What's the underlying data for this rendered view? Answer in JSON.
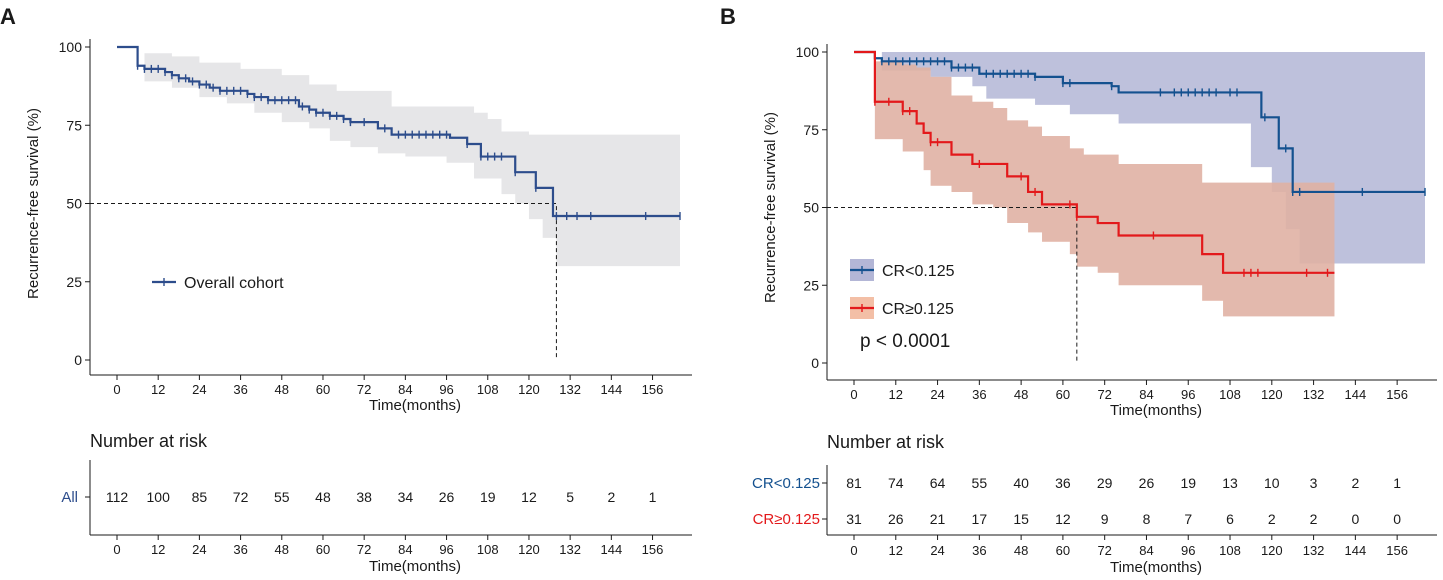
{
  "colors": {
    "overall": "#2d4d8c",
    "overall_ci": "#e6e6e8",
    "cr_low": "#14518f",
    "cr_low_ci": "#b3b6d6",
    "cr_high": "#e3191b",
    "cr_high_ci": "#f3bfa6",
    "axis": "#1a1a1a"
  },
  "chart_data": [
    {
      "panel": "A",
      "type": "line",
      "subtype": "kaplan-meier",
      "ylabel": "Recurrence-free survival (%)",
      "xlabel": "Time(months)",
      "xlim": [
        0,
        164
      ],
      "ylim": [
        0,
        100
      ],
      "x_ticks": [
        0,
        12,
        24,
        36,
        48,
        60,
        72,
        84,
        96,
        108,
        120,
        132,
        144,
        156
      ],
      "y_ticks": [
        0,
        25,
        50,
        75,
        100
      ],
      "legend": "bottom-left",
      "median_line": {
        "x": 128,
        "y": 50
      },
      "series": [
        {
          "name": "Overall cohort",
          "color_key": "overall",
          "ci_color_key": "overall_ci",
          "steps": [
            [
              0,
              100
            ],
            [
              6,
              94
            ],
            [
              8,
              93
            ],
            [
              14,
              92
            ],
            [
              16,
              91
            ],
            [
              18,
              90
            ],
            [
              21,
              89
            ],
            [
              24,
              88
            ],
            [
              27,
              87
            ],
            [
              30,
              86
            ],
            [
              38,
              85
            ],
            [
              40,
              84
            ],
            [
              44,
              83
            ],
            [
              53,
              81
            ],
            [
              56,
              80
            ],
            [
              58,
              79
            ],
            [
              62,
              78
            ],
            [
              66,
              77
            ],
            [
              68,
              76
            ],
            [
              76,
              74
            ],
            [
              80,
              72
            ],
            [
              97,
              71
            ],
            [
              102,
              69
            ],
            [
              106,
              65
            ],
            [
              116,
              60
            ],
            [
              122,
              55
            ],
            [
              127,
              46
            ],
            [
              164,
              46
            ]
          ],
          "ci_upper": [
            [
              0,
              100
            ],
            [
              8,
              98
            ],
            [
              16,
              97
            ],
            [
              24,
              95
            ],
            [
              36,
              93
            ],
            [
              48,
              91
            ],
            [
              56,
              88
            ],
            [
              64,
              86
            ],
            [
              72,
              86
            ],
            [
              80,
              81
            ],
            [
              96,
              81
            ],
            [
              104,
              79
            ],
            [
              108,
              77
            ],
            [
              112,
              73
            ],
            [
              120,
              72
            ],
            [
              130,
              72
            ],
            [
              164,
              72
            ]
          ],
          "ci_lower": [
            [
              0,
              100
            ],
            [
              8,
              89
            ],
            [
              16,
              87
            ],
            [
              24,
              84
            ],
            [
              32,
              82
            ],
            [
              40,
              79
            ],
            [
              48,
              76
            ],
            [
              56,
              74
            ],
            [
              62,
              70
            ],
            [
              68,
              68
            ],
            [
              76,
              66
            ],
            [
              84,
              65
            ],
            [
              96,
              63
            ],
            [
              104,
              58
            ],
            [
              112,
              53
            ],
            [
              116,
              50
            ],
            [
              120,
              45
            ],
            [
              124,
              39
            ],
            [
              128,
              30
            ],
            [
              164,
              30
            ]
          ],
          "censor_x": [
            6,
            8,
            10,
            12,
            14,
            16,
            18,
            20,
            22,
            24,
            26,
            28,
            30,
            32,
            34,
            36,
            38,
            40,
            42,
            44,
            46,
            48,
            50,
            52,
            54,
            56,
            58,
            60,
            62,
            64,
            66,
            68,
            72,
            78,
            82,
            84,
            86,
            88,
            90,
            92,
            94,
            96,
            102,
            106,
            108,
            110,
            112,
            116,
            122,
            128,
            131,
            134,
            138,
            154,
            164
          ]
        }
      ],
      "risk_table": {
        "title": "Number at risk",
        "rows": [
          {
            "label": "All",
            "values": [
              112,
              100,
              85,
              72,
              55,
              48,
              38,
              34,
              26,
              19,
              12,
              5,
              2,
              1
            ]
          }
        ],
        "xlabel": "Time(months)",
        "x_ticks": [
          0,
          12,
          24,
          36,
          48,
          60,
          72,
          84,
          96,
          108,
          120,
          132,
          144,
          156
        ]
      }
    },
    {
      "panel": "B",
      "type": "line",
      "subtype": "kaplan-meier",
      "ylabel": "Recurrence-free survival (%)",
      "xlabel": "Time(months)",
      "xlim": [
        0,
        164
      ],
      "ylim": [
        0,
        100
      ],
      "x_ticks": [
        0,
        12,
        24,
        36,
        48,
        60,
        72,
        84,
        96,
        108,
        120,
        132,
        144,
        156
      ],
      "y_ticks": [
        0,
        25,
        50,
        75,
        100
      ],
      "legend": "bottom-left",
      "annotation": "p < 0.0001",
      "median_line": {
        "x": 64,
        "y": 50
      },
      "series": [
        {
          "name": "CR<0.125",
          "color_key": "cr_low",
          "ci_color_key": "cr_low_ci",
          "steps": [
            [
              0,
              100
            ],
            [
              6,
              98
            ],
            [
              8,
              97
            ],
            [
              28,
              95
            ],
            [
              36,
              93
            ],
            [
              52,
              92
            ],
            [
              60,
              90
            ],
            [
              74,
              89
            ],
            [
              76,
              87
            ],
            [
              117,
              79
            ],
            [
              122,
              69
            ],
            [
              126,
              55
            ],
            [
              164,
              55
            ]
          ],
          "ci_upper": [
            [
              0,
              100
            ],
            [
              164,
              100
            ]
          ],
          "ci_lower": [
            [
              0,
              100
            ],
            [
              8,
              94
            ],
            [
              22,
              92
            ],
            [
              34,
              89
            ],
            [
              38,
              85
            ],
            [
              52,
              83
            ],
            [
              62,
              80
            ],
            [
              72,
              80
            ],
            [
              76,
              77
            ],
            [
              106,
              77
            ],
            [
              114,
              63
            ],
            [
              120,
              55
            ],
            [
              124,
              43
            ],
            [
              128,
              32
            ],
            [
              164,
              32
            ]
          ],
          "censor_x": [
            6,
            8,
            10,
            12,
            14,
            16,
            18,
            20,
            22,
            24,
            26,
            28,
            30,
            32,
            34,
            38,
            40,
            42,
            44,
            46,
            48,
            50,
            52,
            60,
            62,
            74,
            88,
            92,
            94,
            96,
            98,
            100,
            102,
            104,
            108,
            110,
            118,
            124,
            126,
            128,
            146,
            164
          ]
        },
        {
          "name": "CR≥0.125",
          "color_key": "cr_high",
          "ci_color_key": "cr_high_ci",
          "steps": [
            [
              0,
              100
            ],
            [
              6,
              84
            ],
            [
              14,
              81
            ],
            [
              18,
              77
            ],
            [
              20,
              74
            ],
            [
              22,
              71
            ],
            [
              28,
              67
            ],
            [
              34,
              64
            ],
            [
              40,
              64
            ],
            [
              44,
              60
            ],
            [
              50,
              55
            ],
            [
              54,
              51
            ],
            [
              62,
              51
            ],
            [
              64,
              47
            ],
            [
              70,
              45
            ],
            [
              76,
              41
            ],
            [
              100,
              35
            ],
            [
              106,
              29
            ],
            [
              138,
              29
            ]
          ],
          "ci_upper": [
            [
              0,
              100
            ],
            [
              6,
              97
            ],
            [
              14,
              96
            ],
            [
              18,
              95
            ],
            [
              22,
              92
            ],
            [
              28,
              86
            ],
            [
              34,
              84
            ],
            [
              40,
              82
            ],
            [
              44,
              78
            ],
            [
              50,
              76
            ],
            [
              54,
              73
            ],
            [
              62,
              69
            ],
            [
              66,
              67
            ],
            [
              76,
              64
            ],
            [
              100,
              58
            ],
            [
              138,
              58
            ]
          ],
          "ci_lower": [
            [
              0,
              100
            ],
            [
              6,
              72
            ],
            [
              14,
              68
            ],
            [
              20,
              62
            ],
            [
              22,
              57
            ],
            [
              28,
              55
            ],
            [
              34,
              51
            ],
            [
              40,
              50
            ],
            [
              44,
              45
            ],
            [
              50,
              42
            ],
            [
              54,
              39
            ],
            [
              62,
              35
            ],
            [
              64,
              31
            ],
            [
              70,
              29
            ],
            [
              76,
              25
            ],
            [
              100,
              20
            ],
            [
              106,
              15
            ],
            [
              138,
              15
            ]
          ],
          "censor_x": [
            6,
            10,
            14,
            16,
            22,
            24,
            36,
            48,
            52,
            62,
            64,
            86,
            112,
            114,
            116,
            130,
            136
          ]
        }
      ],
      "risk_table": {
        "title": "Number at risk",
        "rows": [
          {
            "label": "CR<0.125",
            "color_key": "cr_low",
            "values": [
              81,
              74,
              64,
              55,
              40,
              36,
              29,
              26,
              19,
              13,
              10,
              3,
              2,
              1
            ]
          },
          {
            "label": "CR≥0.125",
            "color_key": "cr_high",
            "values": [
              31,
              26,
              21,
              17,
              15,
              12,
              9,
              8,
              7,
              6,
              2,
              2,
              0,
              0
            ]
          }
        ],
        "xlabel": "Time(months)",
        "x_ticks": [
          0,
          12,
          24,
          36,
          48,
          60,
          72,
          84,
          96,
          108,
          120,
          132,
          144,
          156
        ]
      }
    }
  ]
}
